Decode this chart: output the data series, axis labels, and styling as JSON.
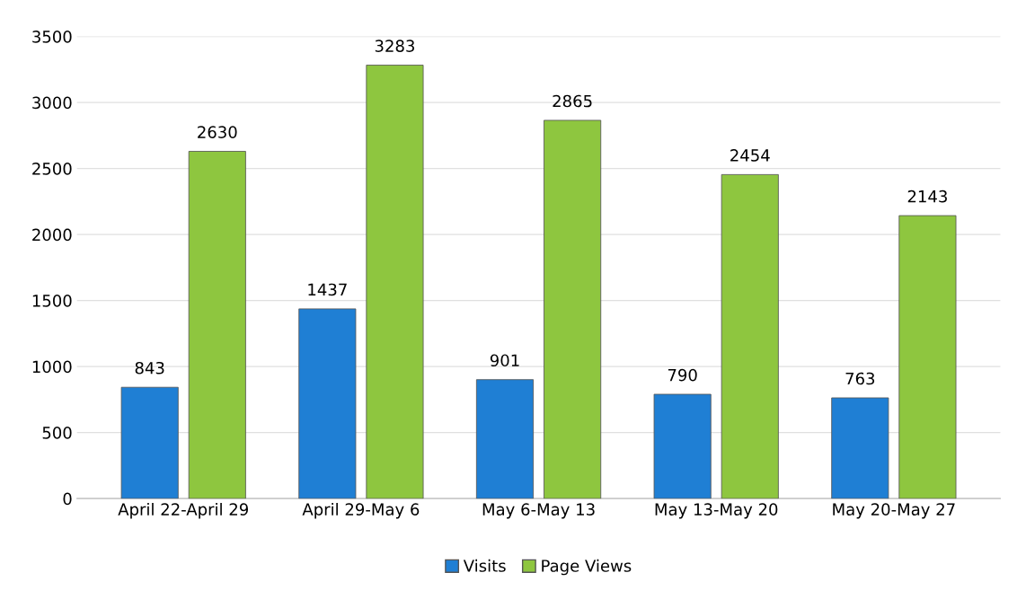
{
  "chart_data": {
    "type": "bar",
    "categories": [
      "April 22-April 29",
      "April 29-May 6",
      "May 6-May 13",
      "May 13-May 20",
      "May 20-May 27"
    ],
    "series": [
      {
        "name": "Visits",
        "color": "#1f7fd4",
        "values": [
          843,
          1437,
          901,
          790,
          763
        ]
      },
      {
        "name": "Page Views",
        "color": "#8ec63f",
        "values": [
          2630,
          3283,
          2865,
          2454,
          2143
        ]
      }
    ],
    "ylim": [
      0,
      3500
    ],
    "yticks": [
      0,
      500,
      1000,
      1500,
      2000,
      2500,
      3000,
      3500
    ],
    "grid": "y",
    "legend": "bottom",
    "data_labels": true
  }
}
